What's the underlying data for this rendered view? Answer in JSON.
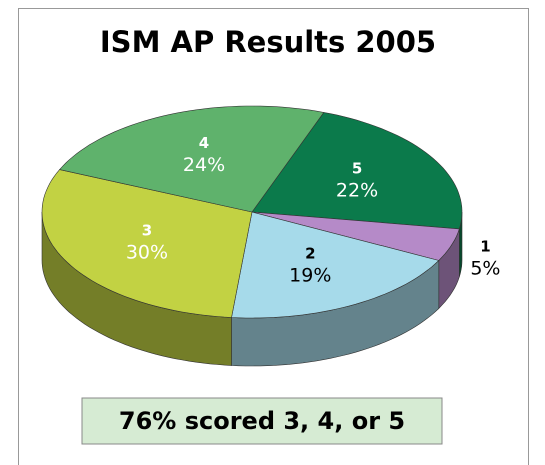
{
  "chart_data": {
    "type": "pie",
    "title": "ISM AP Results 2005",
    "categories": [
      "5",
      "1",
      "2",
      "3",
      "4"
    ],
    "values": [
      22,
      5,
      19,
      30,
      24
    ],
    "value_labels": [
      "22%",
      "5%",
      "19%",
      "30%",
      "24%"
    ],
    "colors": [
      "#0b7a4b",
      "#b58ac8",
      "#a6daea",
      "#c2d243",
      "#5fb26c"
    ],
    "label_colors": [
      "#ffffff",
      "#000000",
      "#000000",
      "#ffffff",
      "#ffffff"
    ],
    "annotation": "76% scored 3, 4, or 5"
  }
}
